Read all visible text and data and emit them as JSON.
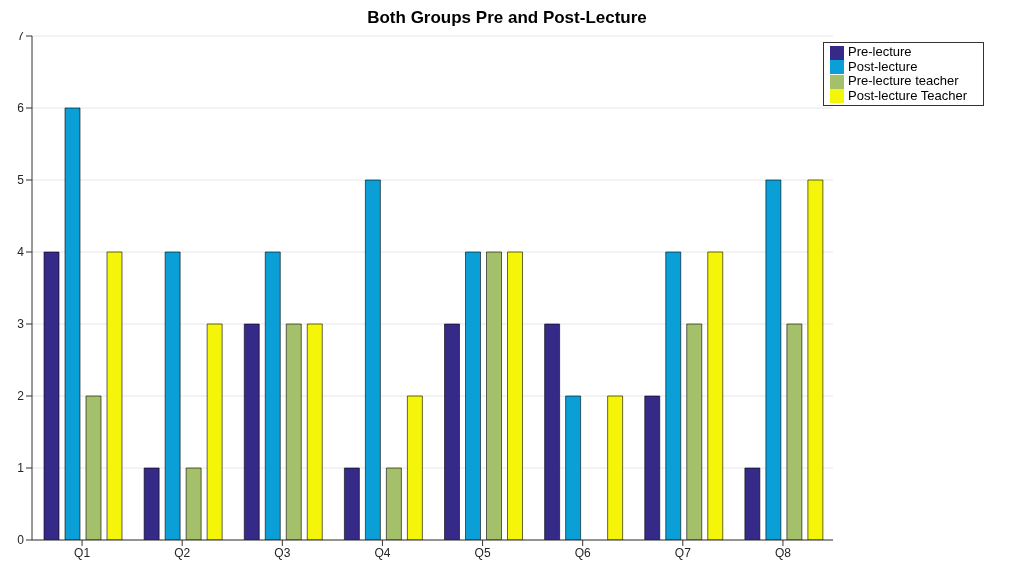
{
  "chart_data": {
    "type": "bar",
    "title": "Both Groups Pre and Post-Lecture",
    "categories": [
      "Q1",
      "Q2",
      "Q3",
      "Q4",
      "Q5",
      "Q6",
      "Q7",
      "Q8"
    ],
    "series": [
      {
        "name": "Pre-lecture",
        "color": "#352a87",
        "values": [
          4,
          1,
          3,
          1,
          3,
          3,
          2,
          1
        ]
      },
      {
        "name": "Post-lecture",
        "color": "#0a9fd6",
        "values": [
          6,
          4,
          4,
          5,
          4,
          2,
          4,
          5
        ]
      },
      {
        "name": "Pre-lecture teacher",
        "color": "#a5c06a",
        "values": [
          2,
          1,
          3,
          1,
          4,
          0,
          3,
          3
        ]
      },
      {
        "name": "Post-lecture Teacher",
        "color": "#f5f50a",
        "values": [
          4,
          3,
          3,
          2,
          4,
          2,
          4,
          5
        ]
      }
    ],
    "ylim": [
      0,
      7
    ],
    "yticks": [
      0,
      1,
      2,
      3,
      4,
      5,
      6,
      7
    ],
    "grid": "y",
    "legend": "top right"
  }
}
